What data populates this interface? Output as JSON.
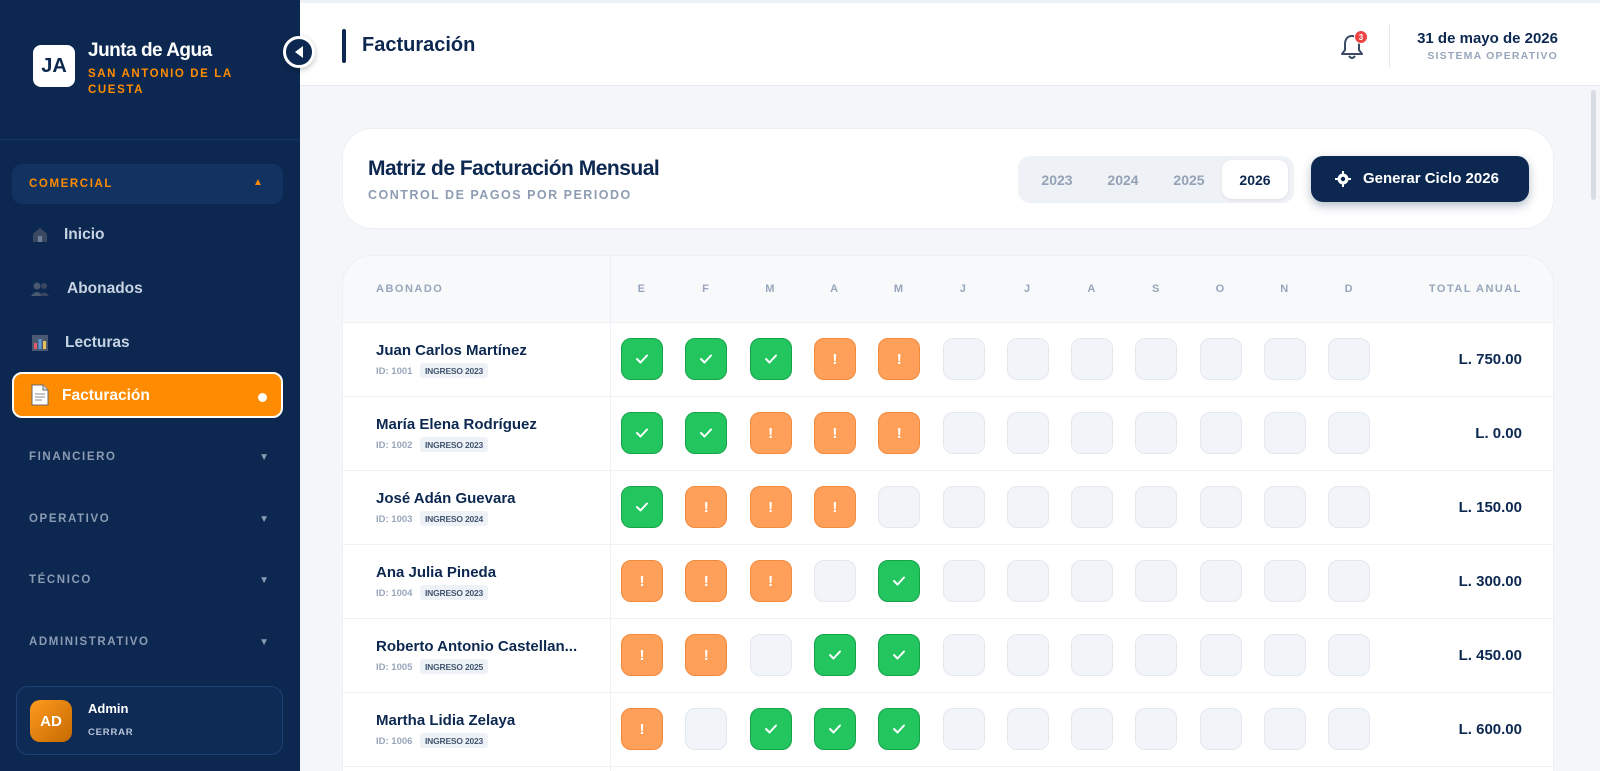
{
  "sidebar": {
    "logo_initials": "JA",
    "brand_title": "Junta de Agua",
    "brand_subtitle": "SAN ANTONIO DE LA CUESTA",
    "open_section": "COMERCIAL",
    "nav": [
      {
        "label": "Inicio",
        "icon": "home-icon"
      },
      {
        "label": "Abonados",
        "icon": "users-icon"
      },
      {
        "label": "Lecturas",
        "icon": "chart-icon"
      },
      {
        "label": "Facturación",
        "icon": "document-icon",
        "active": true
      }
    ],
    "sections": [
      "FINANCIERO",
      "OPERATIVO",
      "TÉCNICO",
      "ADMINISTRATIVO"
    ],
    "user": {
      "initials": "AD",
      "name": "Admin",
      "logout": "CERRAR"
    }
  },
  "header": {
    "title": "Facturación",
    "notifications": "3",
    "date": "31 de mayo de 2026",
    "status": "SISTEMA OPERATIVO"
  },
  "matrix": {
    "title": "Matriz de Facturación Mensual",
    "subtitle": "CONTROL DE PAGOS POR PERIODO",
    "years": [
      "2023",
      "2024",
      "2025",
      "2026"
    ],
    "selected_year": "2026",
    "generate_label": "Generar Ciclo 2026",
    "col_subscriber": "ABONADO",
    "months": [
      "E",
      "F",
      "M",
      "A",
      "M",
      "J",
      "J",
      "A",
      "S",
      "O",
      "N",
      "D"
    ],
    "col_total": "TOTAL ANUAL",
    "rows": [
      {
        "name": "Juan Carlos Martínez",
        "id": "ID: 1001",
        "ingreso": "INGRESO 2023",
        "status": [
          "paid",
          "paid",
          "paid",
          "due",
          "due",
          "empty",
          "empty",
          "empty",
          "empty",
          "empty",
          "empty",
          "empty"
        ],
        "total": "L. 750.00"
      },
      {
        "name": "María Elena Rodríguez",
        "id": "ID: 1002",
        "ingreso": "INGRESO 2023",
        "status": [
          "paid",
          "paid",
          "due",
          "due",
          "due",
          "empty",
          "empty",
          "empty",
          "empty",
          "empty",
          "empty",
          "empty"
        ],
        "total": "L. 0.00"
      },
      {
        "name": "José Adán Guevara",
        "id": "ID: 1003",
        "ingreso": "INGRESO 2024",
        "status": [
          "paid",
          "due",
          "due",
          "due",
          "empty",
          "empty",
          "empty",
          "empty",
          "empty",
          "empty",
          "empty",
          "empty"
        ],
        "total": "L. 150.00"
      },
      {
        "name": "Ana Julia Pineda",
        "id": "ID: 1004",
        "ingreso": "INGRESO 2023",
        "status": [
          "due",
          "due",
          "due",
          "empty",
          "paid",
          "empty",
          "empty",
          "empty",
          "empty",
          "empty",
          "empty",
          "empty"
        ],
        "total": "L. 300.00"
      },
      {
        "name": "Roberto Antonio Castellan...",
        "id": "ID: 1005",
        "ingreso": "INGRESO 2025",
        "status": [
          "due",
          "due",
          "empty",
          "paid",
          "paid",
          "empty",
          "empty",
          "empty",
          "empty",
          "empty",
          "empty",
          "empty"
        ],
        "total": "L. 450.00"
      },
      {
        "name": "Martha Lidia Zelaya",
        "id": "ID: 1006",
        "ingreso": "INGRESO 2023",
        "status": [
          "due",
          "empty",
          "paid",
          "paid",
          "paid",
          "empty",
          "empty",
          "empty",
          "empty",
          "empty",
          "empty",
          "empty"
        ],
        "total": "L. 600.00"
      }
    ]
  },
  "colors": {
    "sidebar": "#0c2850",
    "accent": "#ff8c00",
    "paid": "#22c55e",
    "due": "#ffa05a"
  }
}
